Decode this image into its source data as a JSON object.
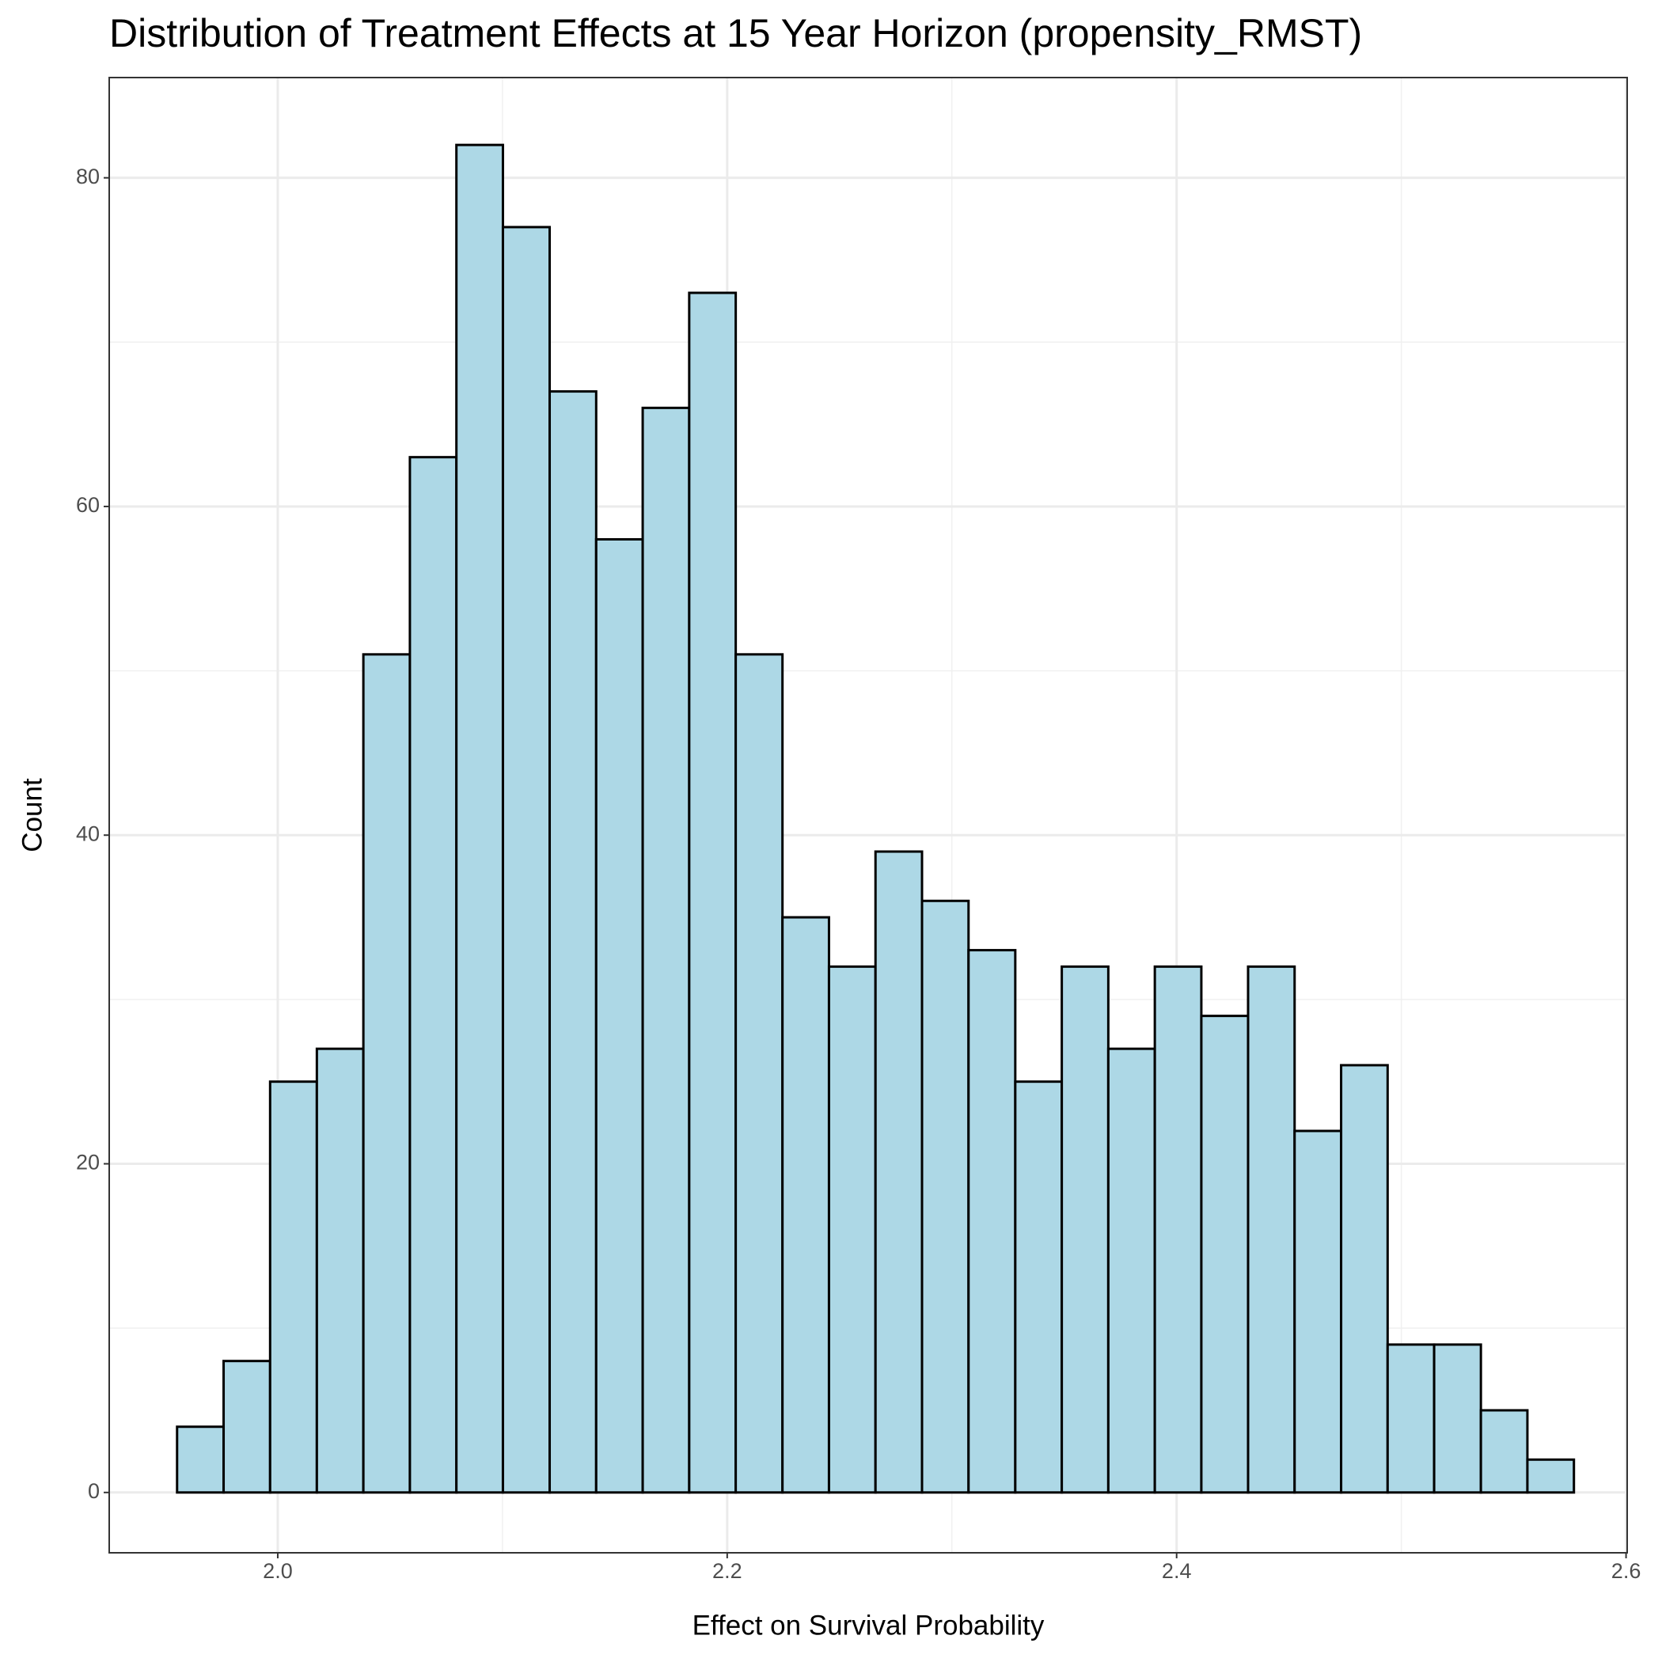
{
  "chart_data": {
    "type": "histogram",
    "title": "Distribution of Treatment Effects at 15 Year Horizon (propensity_RMST)",
    "x_label": "Effect on Survival Probability",
    "y_label": "Count",
    "bins": [
      1.9552,
      1.9759,
      1.9966,
      2.0174,
      2.0381,
      2.0588,
      2.0795,
      2.1002,
      2.121,
      2.1417,
      2.1624,
      2.1831,
      2.2038,
      2.2246,
      2.2453,
      2.266,
      2.2867,
      2.3074,
      2.3282,
      2.3489,
      2.3696,
      2.3903,
      2.411,
      2.4318,
      2.4525,
      2.4732,
      2.4939,
      2.5146,
      2.5354,
      2.5561,
      2.5768
    ],
    "values": [
      4,
      8,
      25,
      27,
      51,
      63,
      82,
      77,
      67,
      58,
      66,
      73,
      51,
      35,
      32,
      39,
      36,
      33,
      25,
      32,
      27,
      32,
      29,
      32,
      22,
      26,
      9,
      9,
      5,
      2
    ],
    "color": "#add8e6",
    "edgecolor": "#000000",
    "xlim": [
      1.925,
      2.6005
    ],
    "ylim": [
      -3.67,
      86.1
    ],
    "xticks": [
      {
        "value": 2,
        "label": "2.0"
      },
      2.2,
      2.4,
      2.6
    ],
    "yticks": [
      0,
      20,
      40,
      60,
      80
    ],
    "grid": true
  }
}
